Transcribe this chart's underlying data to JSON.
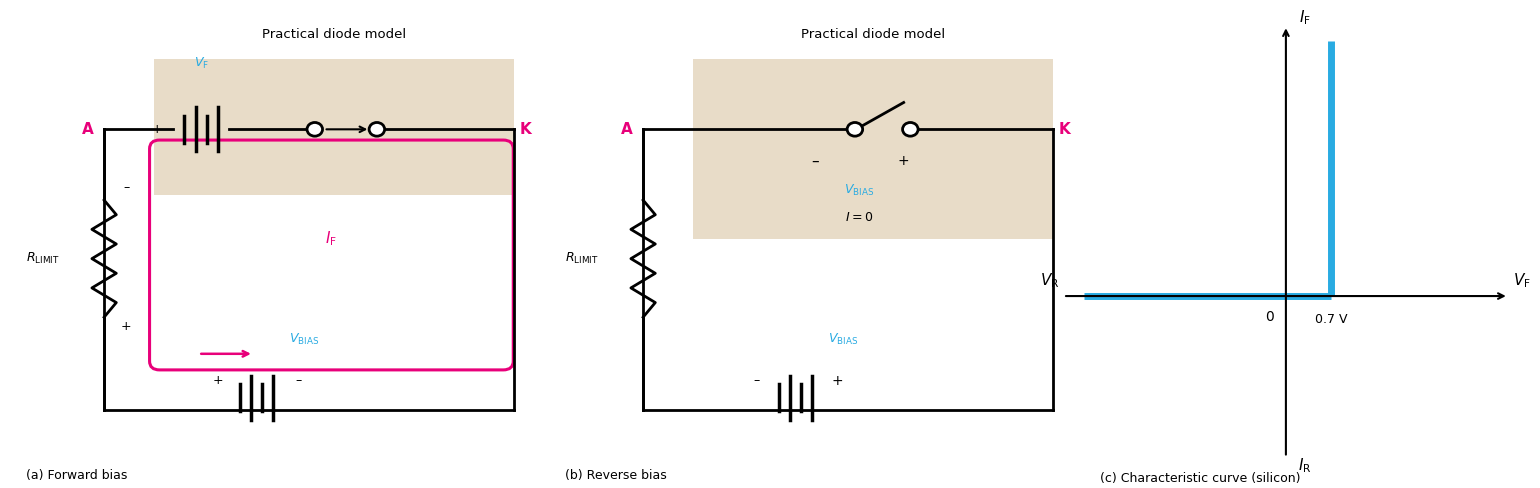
{
  "bg_color": "#ffffff",
  "tan_color": "#e8dcc8",
  "pink_color": "#e8007a",
  "cyan_color": "#29abe2",
  "black_color": "#000000",
  "fig_width": 15.4,
  "fig_height": 4.88,
  "label_a": "(a) Forward bias",
  "label_b": "(b) Reverse bias",
  "label_c": "(c) Characteristic curve (silicon)",
  "pdm_title": "Practical diode model",
  "A_label": "A",
  "K_label": "K",
  "diode_color": "#29abe2",
  "line_width": 2.0
}
